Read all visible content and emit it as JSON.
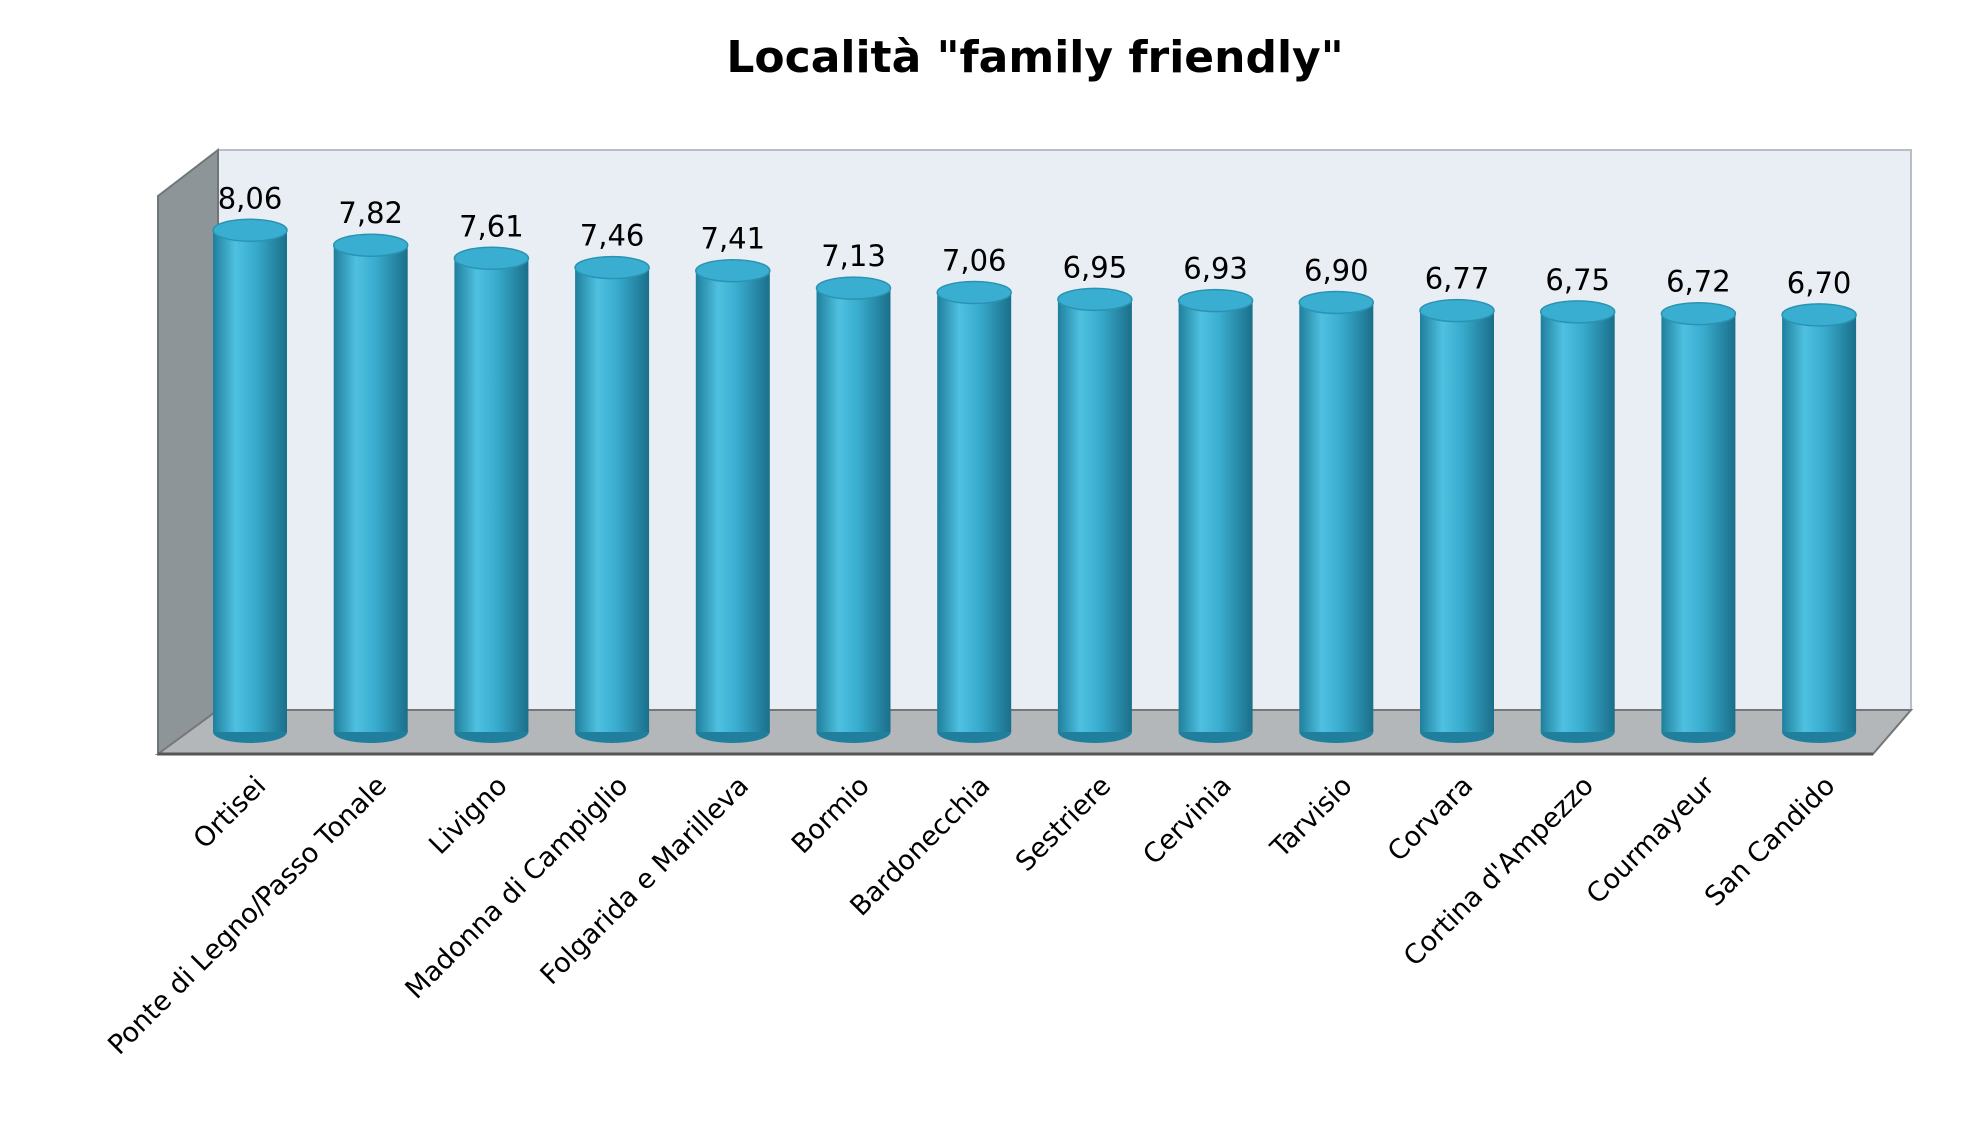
{
  "chart_data": {
    "type": "bar",
    "title": "Località \"family friendly\"",
    "categories": [
      "Ortisei",
      "Ponte di Legno/Passo Tonale",
      "Livigno",
      "Madonna di Campiglio",
      "Folgarida e Marilleva",
      "Bormio",
      "Bardonecchia",
      "Sestriere",
      "Cervinia",
      "Tarvisio",
      "Corvara",
      "Cortina d'Ampezzo",
      "Courmayeur",
      "San Candido"
    ],
    "values": [
      8.06,
      7.82,
      7.61,
      7.46,
      7.41,
      7.13,
      7.06,
      6.95,
      6.93,
      6.9,
      6.77,
      6.75,
      6.72,
      6.7
    ],
    "value_labels": [
      "8,06",
      "7,82",
      "7,61",
      "7,46",
      "7,41",
      "7,13",
      "7,06",
      "6,95",
      "6,93",
      "6,90",
      "6,77",
      "6,75",
      "6,72",
      "6,70"
    ],
    "color": "#3aaed0"
  }
}
